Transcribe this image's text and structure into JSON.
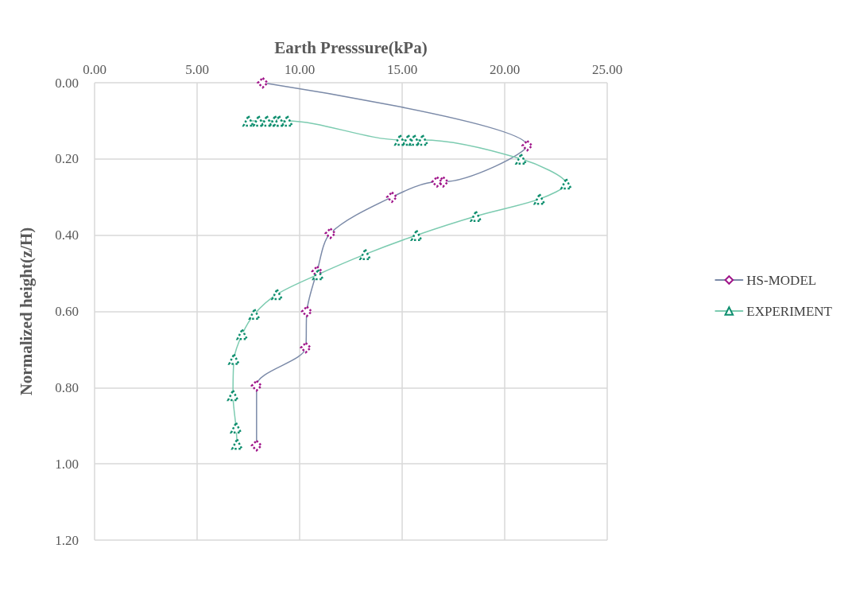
{
  "chart_data": {
    "type": "line",
    "xlabel": "Earth Presssure(kPa)",
    "ylabel": "Normalized height(z/H)",
    "xlim": [
      0,
      25
    ],
    "xticks": [
      {
        "value": 0,
        "label": "0.00"
      },
      {
        "value": 5,
        "label": "5.00"
      },
      {
        "value": 10,
        "label": "10.00"
      },
      {
        "value": 15,
        "label": "15.00"
      },
      {
        "value": 20,
        "label": "20.00"
      },
      {
        "value": 25,
        "label": "25.00"
      }
    ],
    "ylim": [
      1.2,
      0
    ],
    "yticks": [
      {
        "value": 0,
        "label": "0.00"
      },
      {
        "value": 0.2,
        "label": "0.20"
      },
      {
        "value": 0.4,
        "label": "0.40"
      },
      {
        "value": 0.6,
        "label": "0.60"
      },
      {
        "value": 0.8,
        "label": "0.80"
      },
      {
        "value": 1,
        "label": "1.00"
      },
      {
        "value": 1.2,
        "label": "1.20"
      }
    ],
    "grid": true,
    "legend": "right",
    "line_style": "solid",
    "series": [
      {
        "name": "HS-MODEL",
        "color": "#7b8aa8",
        "marker": "diamond",
        "x": [
          8.2,
          21.1,
          17.0,
          16.7,
          14.5,
          11.5,
          10.85,
          10.35,
          10.3,
          7.9,
          7.9
        ],
        "values": [
          0,
          0.165,
          0.26,
          0.26,
          0.3,
          0.395,
          0.495,
          0.6,
          0.695,
          0.795,
          0.952
        ],
        "colors": [
          "#a0158a",
          "#a0158a",
          "#a0158a",
          "#a0158a",
          "#a0158a",
          "#a0158a",
          "#a0158a",
          "#a0158a",
          "#a0158a",
          "#a0158a",
          "#a0158a"
        ]
      },
      {
        "name": "EXPERIMENT",
        "color": "#7ccbb0",
        "marker": "triangle",
        "x": [
          7.5,
          8.0,
          8.4,
          8.8,
          9.0,
          9.4,
          14.9,
          15.3,
          15.6,
          16.0,
          20.8,
          23.0,
          21.7,
          18.6,
          15.7,
          13.2,
          10.9,
          8.9,
          7.8,
          7.2,
          6.8,
          6.75,
          6.9,
          6.95
        ],
        "values": [
          0.1,
          0.1,
          0.1,
          0.1,
          0.1,
          0.1,
          0.15,
          0.15,
          0.15,
          0.15,
          0.2,
          0.265,
          0.305,
          0.35,
          0.4,
          0.45,
          0.503,
          0.555,
          0.607,
          0.66,
          0.725,
          0.82,
          0.905,
          0.948
        ],
        "colors": [
          "#0f8f6f",
          "#0f8f6f",
          "#0f8f6f",
          "#0f8f6f",
          "#0f8f6f",
          "#0f8f6f",
          "#0f8f6f",
          "#0f8f6f",
          "#0f8f6f",
          "#0f8f6f",
          "#0f8f6f",
          "#0f8f6f",
          "#0f8f6f",
          "#0f8f6f",
          "#0f8f6f",
          "#0f8f6f",
          "#0f8f6f",
          "#0f8f6f",
          "#0f8f6f",
          "#0f8f6f",
          "#0f8f6f",
          "#0f8f6f",
          "#0f8f6f",
          "#0f8f6f"
        ]
      }
    ]
  }
}
